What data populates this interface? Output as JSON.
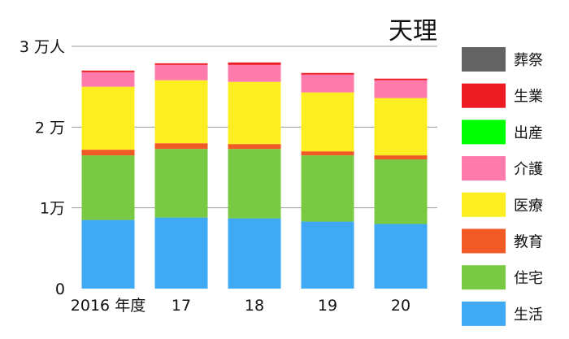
{
  "chart_data": {
    "type": "bar",
    "stacked": true,
    "title": "天理",
    "categories": [
      "2016 年度",
      "17",
      "18",
      "19",
      "20"
    ],
    "y_ticks": [
      "0",
      "1万",
      "2 万",
      "3 万人"
    ],
    "ylim": [
      0,
      30000
    ],
    "grid": true,
    "legend_position": "right",
    "series": [
      {
        "name": "生活",
        "color": "#3fa9f5",
        "values": [
          8500,
          8800,
          8700,
          8300,
          8000
        ]
      },
      {
        "name": "住宅",
        "color": "#7ac943",
        "values": [
          8000,
          8500,
          8600,
          8200,
          8000
        ]
      },
      {
        "name": "教育",
        "color": "#f15a24",
        "values": [
          700,
          700,
          600,
          500,
          500
        ]
      },
      {
        "name": "医療",
        "color": "#fcee21",
        "values": [
          7800,
          7800,
          7700,
          7300,
          7100
        ]
      },
      {
        "name": "介護",
        "color": "#ff7bac",
        "values": [
          1800,
          1900,
          2100,
          2200,
          2200
        ]
      },
      {
        "name": "出産",
        "color": "#00ff00",
        "values": [
          0,
          0,
          0,
          0,
          0
        ]
      },
      {
        "name": "生業",
        "color": "#ed1c24",
        "values": [
          200,
          200,
          300,
          200,
          200
        ]
      },
      {
        "name": "葬祭",
        "color": "#636363",
        "values": [
          0,
          0,
          0,
          0,
          0
        ]
      }
    ]
  }
}
